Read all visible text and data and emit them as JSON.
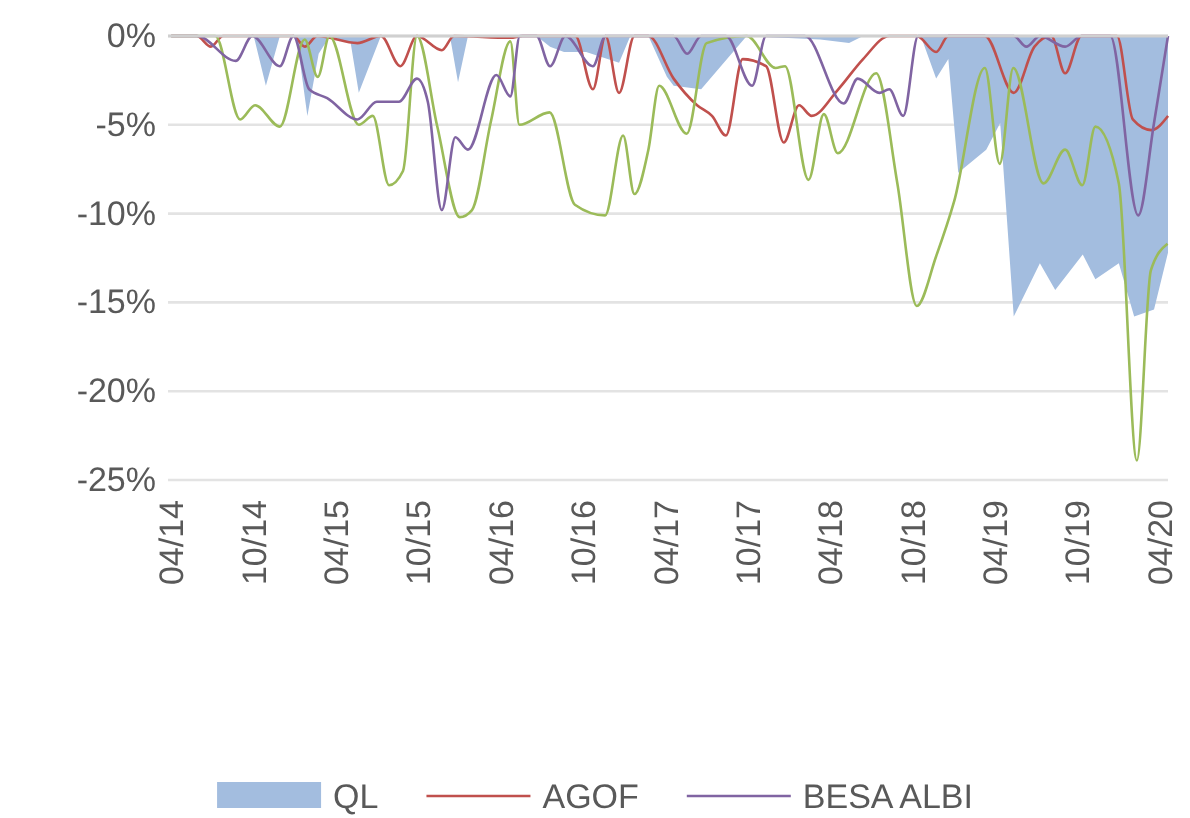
{
  "chart_data": {
    "type": "line",
    "xlim": [
      "2014-03-25",
      "2020-04-19"
    ],
    "xticks": [
      {
        "value": "2014-04-01",
        "label": "04/14"
      },
      {
        "value": "2014-10-01",
        "label": "10/14"
      },
      {
        "value": "2015-04-01",
        "label": "04/15"
      },
      {
        "value": "2015-10-01",
        "label": "10/15"
      },
      {
        "value": "2016-04-01",
        "label": "04/16"
      },
      {
        "value": "2016-10-01",
        "label": "10/16"
      },
      {
        "value": "2017-04-01",
        "label": "04/17"
      },
      {
        "value": "2017-10-01",
        "label": "10/17"
      },
      {
        "value": "2018-04-01",
        "label": "04/18"
      },
      {
        "value": "2018-10-01",
        "label": "10/18"
      },
      {
        "value": "2019-04-01",
        "label": "04/19"
      },
      {
        "value": "2019-10-01",
        "label": "10/19"
      },
      {
        "value": "2020-04-01",
        "label": "04/20"
      }
    ],
    "ylim": [
      -25,
      0
    ],
    "yticks": [
      {
        "value": 0,
        "label": "0%"
      },
      {
        "value": -5,
        "label": "-5%"
      },
      {
        "value": -10,
        "label": "-10%"
      },
      {
        "value": -15,
        "label": "-15%"
      },
      {
        "value": -20,
        "label": "-20%"
      },
      {
        "value": -25,
        "label": "-25%"
      }
    ],
    "grid": "y",
    "legend": "bottom",
    "series": [
      {
        "name": "QL",
        "type": "area",
        "color": "#a3bddf",
        "x": [
          "2014-04-01",
          "2014-10-01",
          "2014-10-28",
          "2014-11-28",
          "2015-01-04",
          "2015-01-28",
          "2015-02-22",
          "2015-03-19",
          "2015-05-04",
          "2015-05-22",
          "2015-07-10",
          "2015-12-10",
          "2015-12-28",
          "2016-01-19",
          "2016-06-19",
          "2016-07-19",
          "2016-08-19",
          "2016-10-07",
          "2016-12-19",
          "2017-01-13",
          "2017-02-22",
          "2017-04-04",
          "2017-04-19",
          "2017-06-19",
          "2017-09-28",
          "2018-03-10",
          "2018-05-13",
          "2018-06-13",
          "2018-10-19",
          "2018-11-22",
          "2018-12-19",
          "2019-01-10",
          "2019-03-13",
          "2019-04-13",
          "2019-05-13",
          "2019-07-10",
          "2019-08-13",
          "2019-10-13",
          "2019-11-10",
          "2020-01-01",
          "2020-02-04",
          "2020-03-19",
          "2020-04-19"
        ],
        "values": [
          0,
          0,
          -2.8,
          0,
          0,
          -4.5,
          -1,
          0,
          -0.4,
          -3.2,
          0,
          0,
          -2.6,
          0,
          0,
          -0.6,
          -0.9,
          -0.9,
          -1.5,
          0,
          0,
          -2.3,
          -2.8,
          -3,
          0,
          -0.2,
          -0.4,
          0,
          0,
          -2.4,
          -1.3,
          -7.7,
          -6.4,
          -4.9,
          -15.8,
          -12.8,
          -14.3,
          -12.3,
          -13.7,
          -12.8,
          -15.8,
          -15.4,
          -12.2
        ]
      },
      {
        "name": "AGOF",
        "color": "#c0504d",
        "x": [
          "2014-04-01",
          "2014-05-28",
          "2014-06-28",
          "2014-07-25",
          "2014-12-28",
          "2015-01-22",
          "2015-02-19",
          "2015-05-19",
          "2015-07-10",
          "2015-08-22",
          "2015-09-28",
          "2015-11-22",
          "2015-12-19",
          "2016-04-22",
          "2016-05-19",
          "2016-09-13",
          "2016-10-22",
          "2016-11-19",
          "2016-12-19",
          "2017-01-22",
          "2017-02-22",
          "2017-04-19",
          "2017-06-10",
          "2017-07-13",
          "2017-08-13",
          "2017-09-19",
          "2017-11-10",
          "2017-12-19",
          "2018-01-22",
          "2018-02-19",
          "2018-04-19",
          "2018-06-13",
          "2018-08-10",
          "2018-10-10",
          "2018-11-22",
          "2018-12-19",
          "2019-03-10",
          "2019-05-13",
          "2019-06-28",
          "2019-08-04",
          "2019-09-04",
          "2019-10-10",
          "2019-12-28",
          "2020-02-01",
          "2020-03-13",
          "2020-04-19"
        ],
        "values": [
          0,
          0,
          -0.6,
          0,
          0,
          -0.6,
          0,
          -0.4,
          0,
          -1.7,
          0,
          -0.8,
          0,
          -0.1,
          0,
          0,
          -3,
          0,
          -3.2,
          0,
          0,
          -2.4,
          -3.9,
          -4.5,
          -5.6,
          -1.3,
          -1.7,
          -6,
          -3.9,
          -4.5,
          -3,
          -1.3,
          0,
          0,
          -0.9,
          0,
          0,
          -3.2,
          -0.6,
          0,
          -2.1,
          0,
          0,
          -4.7,
          -5.3,
          -4.5
        ]
      },
      {
        "color": "#9bbb59",
        "x": [
          "2014-04-01",
          "2014-07-08",
          "2014-09-01",
          "2014-10-04",
          "2014-11-28",
          "2015-01-22",
          "2015-02-20",
          "2015-03-18",
          "2015-05-22",
          "2015-06-22",
          "2015-07-28",
          "2015-08-28",
          "2015-09-28",
          "2015-11-12",
          "2016-01-01",
          "2016-01-28",
          "2016-03-10",
          "2016-04-22",
          "2016-05-12",
          "2016-07-18",
          "2016-09-12",
          "2016-11-18",
          "2016-12-28",
          "2017-01-22",
          "2017-02-22",
          "2017-03-18",
          "2017-05-18",
          "2017-07-01",
          "2017-09-28",
          "2017-12-01",
          "2017-12-22",
          "2018-02-12",
          "2018-03-18",
          "2018-04-18",
          "2018-07-12",
          "2018-08-28",
          "2018-10-10",
          "2018-11-22",
          "2019-01-01",
          "2019-03-10",
          "2019-04-12",
          "2019-05-12",
          "2019-07-18",
          "2019-09-04",
          "2019-10-12",
          "2019-11-10",
          "2020-01-01",
          "2020-02-10",
          "2020-03-12",
          "2020-04-18"
        ],
        "values": [
          0,
          0,
          -4.7,
          -3.9,
          -5.1,
          -0.2,
          -2.3,
          0,
          -5,
          -4.5,
          -8.4,
          -7.6,
          0,
          -5.1,
          -10.2,
          -9.8,
          -4.8,
          -0.3,
          -5,
          -4.3,
          -9.5,
          -10.1,
          -5.6,
          -8.9,
          -6.4,
          -2.8,
          -5.5,
          -0.4,
          0,
          -1.8,
          -1.7,
          -8.1,
          -4.4,
          -6.6,
          -2.1,
          -8.3,
          -15.2,
          -12.4,
          -9.3,
          -1.8,
          -7.2,
          -1.8,
          -8.3,
          -6.4,
          -8.4,
          -5.1,
          -8.3,
          -23.9,
          -13.2,
          -11.7
        ]
      },
      {
        "name": "BESA ALBI",
        "color": "#8064a2",
        "x": [
          "2014-04-01",
          "2014-05-28",
          "2014-08-22",
          "2014-09-28",
          "2014-11-28",
          "2014-12-28",
          "2015-02-01",
          "2015-03-13",
          "2015-05-19",
          "2015-07-01",
          "2015-08-19",
          "2015-09-28",
          "2015-10-22",
          "2015-11-22",
          "2015-12-22",
          "2016-01-19",
          "2016-03-22",
          "2016-04-22",
          "2016-05-13",
          "2016-06-19",
          "2016-07-19",
          "2016-08-22",
          "2016-10-22",
          "2016-11-19",
          "2017-04-19",
          "2017-05-19",
          "2017-06-19",
          "2017-08-13",
          "2017-10-10",
          "2017-11-10",
          "2018-02-04",
          "2018-05-01",
          "2018-06-01",
          "2018-07-19",
          "2018-08-10",
          "2018-09-10",
          "2018-10-13",
          "2019-05-13",
          "2019-06-10",
          "2019-07-10",
          "2019-09-04",
          "2019-10-10",
          "2019-12-13",
          "2020-02-13",
          "2020-03-19",
          "2020-04-19"
        ],
        "values": [
          0,
          0,
          -1.4,
          0,
          -1.7,
          0,
          -3,
          -3.5,
          -4.7,
          -3.7,
          -3.7,
          -2.4,
          -3.7,
          -9.8,
          -5.7,
          -6.4,
          -2.2,
          -3.4,
          0,
          0,
          -1.7,
          0,
          -1.7,
          0,
          0,
          -1,
          0,
          0,
          -2.8,
          0,
          0,
          -3.8,
          -2.4,
          -3.2,
          -3,
          -4.5,
          0,
          0,
          -0.6,
          0,
          -0.6,
          0,
          0,
          -10.1,
          -4.9,
          0
        ]
      }
    ]
  }
}
